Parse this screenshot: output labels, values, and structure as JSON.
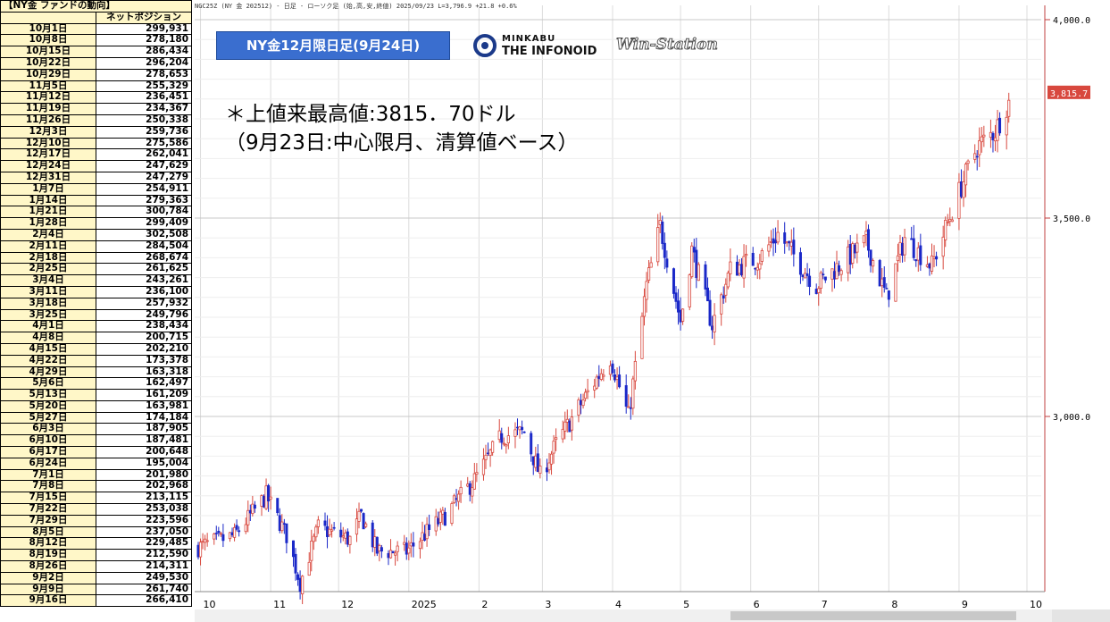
{
  "table": {
    "title": "【NY金 ファンドの動向】",
    "col_header": "ネットポジション",
    "rows": [
      {
        "date": "10月1日",
        "value": "299,931"
      },
      {
        "date": "10月8日",
        "value": "278,180"
      },
      {
        "date": "10月15日",
        "value": "286,434"
      },
      {
        "date": "10月22日",
        "value": "296,204"
      },
      {
        "date": "10月29日",
        "value": "278,653"
      },
      {
        "date": "11月5日",
        "value": "255,329"
      },
      {
        "date": "11月12日",
        "value": "236,451"
      },
      {
        "date": "11月19日",
        "value": "234,367"
      },
      {
        "date": "11月26日",
        "value": "250,338"
      },
      {
        "date": "12月3日",
        "value": "259,736"
      },
      {
        "date": "12月10日",
        "value": "275,586"
      },
      {
        "date": "12月17日",
        "value": "262,041"
      },
      {
        "date": "12月24日",
        "value": "247,629"
      },
      {
        "date": "12月31日",
        "value": "247,279"
      },
      {
        "date": "1月7日",
        "value": "254,911"
      },
      {
        "date": "1月14日",
        "value": "279,363"
      },
      {
        "date": "1月21日",
        "value": "300,784"
      },
      {
        "date": "1月28日",
        "value": "299,409"
      },
      {
        "date": "2月4日",
        "value": "302,508"
      },
      {
        "date": "2月11日",
        "value": "284,504"
      },
      {
        "date": "2月18日",
        "value": "268,674"
      },
      {
        "date": "2月25日",
        "value": "261,625"
      },
      {
        "date": "3月4日",
        "value": "243,261"
      },
      {
        "date": "3月11日",
        "value": "236,100"
      },
      {
        "date": "3月18日",
        "value": "257,932"
      },
      {
        "date": "3月25日",
        "value": "249,796"
      },
      {
        "date": "4月1日",
        "value": "238,434"
      },
      {
        "date": "4月8日",
        "value": "200,715"
      },
      {
        "date": "4月15日",
        "value": "202,210"
      },
      {
        "date": "4月22日",
        "value": "173,378"
      },
      {
        "date": "4月29日",
        "value": "163,318"
      },
      {
        "date": "5月6日",
        "value": "162,497"
      },
      {
        "date": "5月13日",
        "value": "161,209"
      },
      {
        "date": "5月20日",
        "value": "163,981"
      },
      {
        "date": "5月27日",
        "value": "174,184"
      },
      {
        "date": "6月3日",
        "value": "187,905"
      },
      {
        "date": "6月10日",
        "value": "187,481"
      },
      {
        "date": "6月17日",
        "value": "200,648"
      },
      {
        "date": "6月24日",
        "value": "195,004"
      },
      {
        "date": "7月1日",
        "value": "201,980"
      },
      {
        "date": "7月8日",
        "value": "202,968"
      },
      {
        "date": "7月15日",
        "value": "213,115"
      },
      {
        "date": "7月22日",
        "value": "253,038"
      },
      {
        "date": "7月29日",
        "value": "223,596"
      },
      {
        "date": "8月5日",
        "value": "237,050"
      },
      {
        "date": "8月12日",
        "value": "229,485"
      },
      {
        "date": "8月19日",
        "value": "212,590"
      },
      {
        "date": "8月26日",
        "value": "214,311"
      },
      {
        "date": "9月2日",
        "value": "249,530"
      },
      {
        "date": "9月9日",
        "value": "261,740"
      },
      {
        "date": "9月16日",
        "value": "266,410"
      }
    ]
  },
  "badge": "NY金12月限日足(9月24日)",
  "logo": {
    "line1": "MINKABU",
    "line2": "THE INFONOID",
    "line3": "Win-Station"
  },
  "annotation": {
    "line1": "＊上値来最高値:3815．70ドル",
    "line2": "（9月23日:中心限月、清算値ベース）"
  },
  "chart_header": "NGC25Z (NY 金 202512) - 日足 - ローソク足 (始,高,安,終値)  2025/09/23 L=3,796.9 +21.8 +0.6%",
  "chart_data": {
    "type": "candlestick",
    "y_ticks": [
      "4,000.0",
      "3,500.0",
      "3,000.0"
    ],
    "ylim": [
      2700,
      4050
    ],
    "last_price_label": "3,815.7",
    "x_labels": [
      "10",
      "11",
      "12",
      "2025",
      "2",
      "3",
      "4",
      "5",
      "6",
      "7",
      "8",
      "9",
      "10"
    ],
    "anchors": [
      {
        "x": "2024-09-30",
        "close": 2670
      },
      {
        "x": "2024-10-16",
        "close": 2700
      },
      {
        "x": "2024-10-30",
        "close": 2800
      },
      {
        "x": "2024-11-08",
        "close": 2700
      },
      {
        "x": "2024-11-14",
        "close": 2580
      },
      {
        "x": "2024-11-22",
        "close": 2720
      },
      {
        "x": "2024-12-06",
        "close": 2690
      },
      {
        "x": "2024-12-11",
        "close": 2750
      },
      {
        "x": "2024-12-18",
        "close": 2660
      },
      {
        "x": "2024-12-31",
        "close": 2660
      },
      {
        "x": "2025-01-17",
        "close": 2750
      },
      {
        "x": "2025-01-30",
        "close": 2840
      },
      {
        "x": "2025-02-11",
        "close": 2950
      },
      {
        "x": "2025-02-21",
        "close": 2960
      },
      {
        "x": "2025-02-28",
        "close": 2850
      },
      {
        "x": "2025-03-07",
        "close": 2930
      },
      {
        "x": "2025-03-20",
        "close": 3050
      },
      {
        "x": "2025-03-31",
        "close": 3150
      },
      {
        "x": "2025-04-08",
        "close": 3000
      },
      {
        "x": "2025-04-16",
        "close": 3330
      },
      {
        "x": "2025-04-22",
        "close": 3480
      },
      {
        "x": "2025-05-01",
        "close": 3240
      },
      {
        "x": "2025-05-06",
        "close": 3420
      },
      {
        "x": "2025-05-15",
        "close": 3230
      },
      {
        "x": "2025-05-23",
        "close": 3370
      },
      {
        "x": "2025-06-05",
        "close": 3400
      },
      {
        "x": "2025-06-13",
        "close": 3460
      },
      {
        "x": "2025-06-30",
        "close": 3330
      },
      {
        "x": "2025-07-22",
        "close": 3440
      },
      {
        "x": "2025-07-31",
        "close": 3300
      },
      {
        "x": "2025-08-08",
        "close": 3450
      },
      {
        "x": "2025-08-20",
        "close": 3380
      },
      {
        "x": "2025-09-02",
        "close": 3580
      },
      {
        "x": "2025-09-09",
        "close": 3680
      },
      {
        "x": "2025-09-17",
        "close": 3720
      },
      {
        "x": "2025-09-23",
        "close": 3796.9
      }
    ],
    "last_bar": {
      "x": "2025-09-23",
      "high": 3815.7,
      "close": 3796.9
    },
    "up_color": "#d8483e",
    "down_color": "#1a28c8",
    "grid": true
  }
}
